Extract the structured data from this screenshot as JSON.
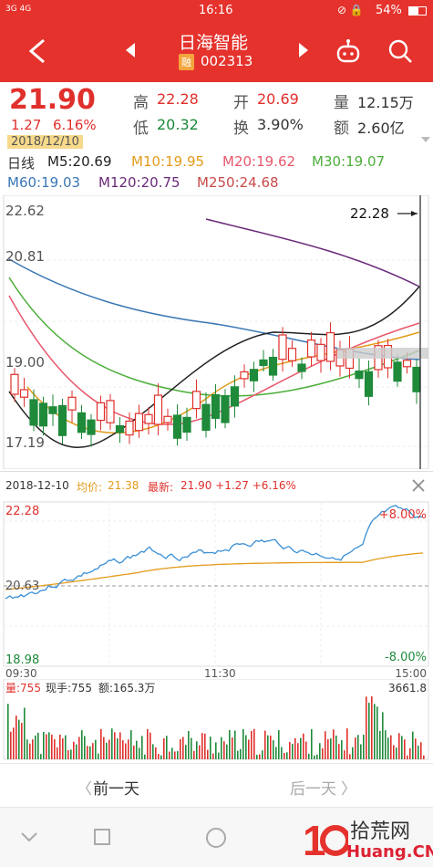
{
  "status": {
    "signal": "3G 4G",
    "time": "16:16",
    "battery": "54%"
  },
  "header": {
    "title": "日海智能",
    "margin_badge": "融",
    "code": "002313",
    "back_icon": "back-arrow-icon",
    "prev_icon": "prev-stock-icon",
    "next_icon": "next-stock-icon",
    "bot_icon": "robot-icon",
    "search_icon": "search-icon"
  },
  "quote": {
    "price": "21.90",
    "change": "1.27",
    "change_pct": "6.16%",
    "date": "2018/12/10",
    "high_label": "高",
    "high": "22.28",
    "low_label": "低",
    "low": "20.32",
    "open_label": "开",
    "open": "20.69",
    "turnover_label": "换",
    "turnover": "3.90%",
    "volume_label": "量",
    "volume": "12.15万",
    "amount_label": "额",
    "amount": "2.60亿"
  },
  "ma": {
    "label": "日线",
    "m5": "M5:20.69",
    "m10": "M10:19.95",
    "m20": "M20:19.62",
    "m30": "M30:19.07",
    "m60": "M60:19.03",
    "m120": "M120:20.75",
    "m250": "M250:24.68"
  },
  "kchart": {
    "y_ticks": [
      "22.62",
      "20.81",
      "19.00",
      "17.19"
    ],
    "high_marker": "22.28"
  },
  "intraday": {
    "date": "2018-12-10",
    "avg_label": "均价:",
    "avg": "21.38",
    "latest_label": "最新:",
    "latest": "21.90 +1.27 +6.16%",
    "y_top": "22.28",
    "y_mid": "20.63",
    "y_bottom": "18.98",
    "pct_top": "+8.00%",
    "pct_bottom": "-8.00%",
    "times": [
      "09:30",
      "11:30",
      "15:00"
    ],
    "close_icon": "close-icon"
  },
  "volume": {
    "vol_label": "量:755",
    "hand_label": "现手:755",
    "amount_label": "额:165.3万",
    "max": "3661.8"
  },
  "daynav": {
    "prev": "前一天",
    "next": "后一天"
  },
  "watermark": {
    "brand": "拾荒网",
    "domain": "Huang.CN"
  },
  "colors": {
    "up": "#e0302c",
    "down": "#1f8a3a",
    "brand": "#e5322d"
  }
}
